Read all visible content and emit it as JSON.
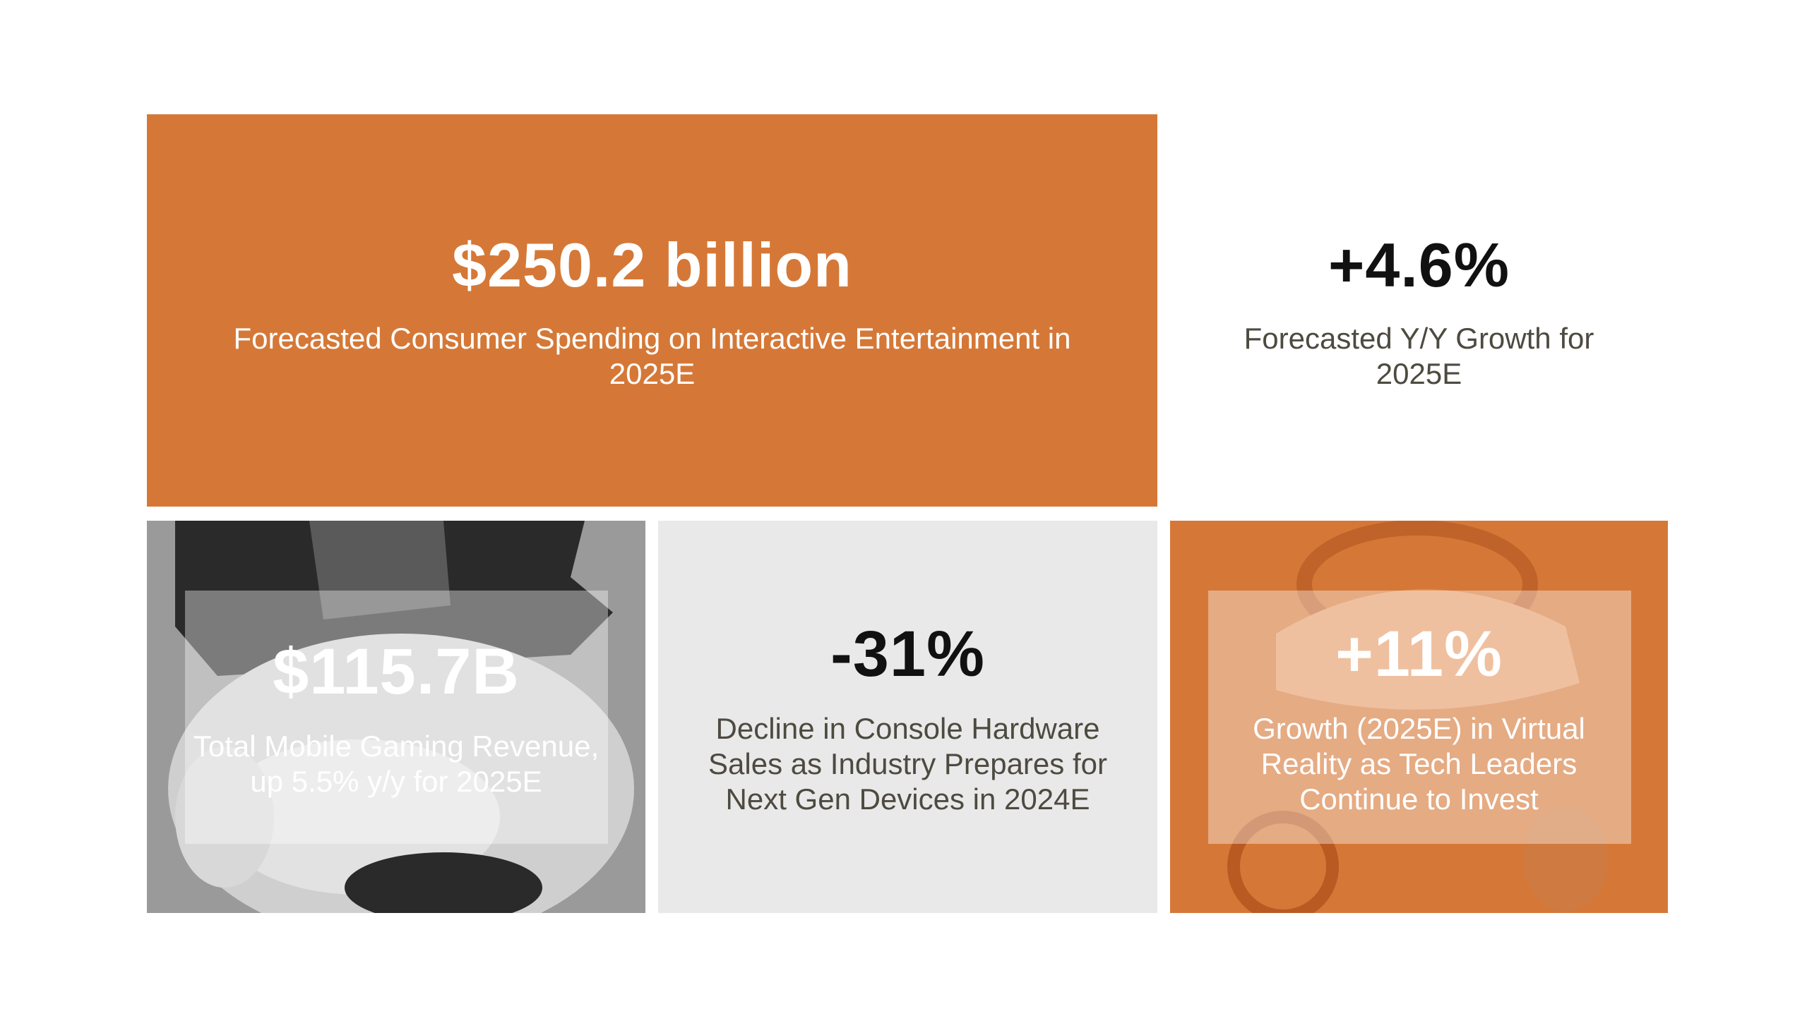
{
  "hero": {
    "value": "$250.2 billion",
    "caption": "Forecasted Consumer Spending on Interactive Entertainment in 2025E"
  },
  "growth": {
    "value": "+4.6%",
    "caption": "Forecasted Y/Y Growth for 2025E"
  },
  "mobile": {
    "value": "$115.7B",
    "caption": "Total Mobile Gaming Revenue, up 5.5% y/y for 2025E",
    "image": "monopoly-mascot-image"
  },
  "console": {
    "value": "-31%",
    "caption": "Decline in Console Hardware Sales as Industry Prepares for Next Gen Devices in 2024E"
  },
  "vr": {
    "value": "+11%",
    "caption": "Growth (2025E) in Virtual Reality as Tech Leaders Continue to Invest",
    "image": "vr-headset-image"
  },
  "colors": {
    "accent": "#d57837",
    "light_gray": "#e9e9e9",
    "text_dark": "#4d4a40"
  }
}
